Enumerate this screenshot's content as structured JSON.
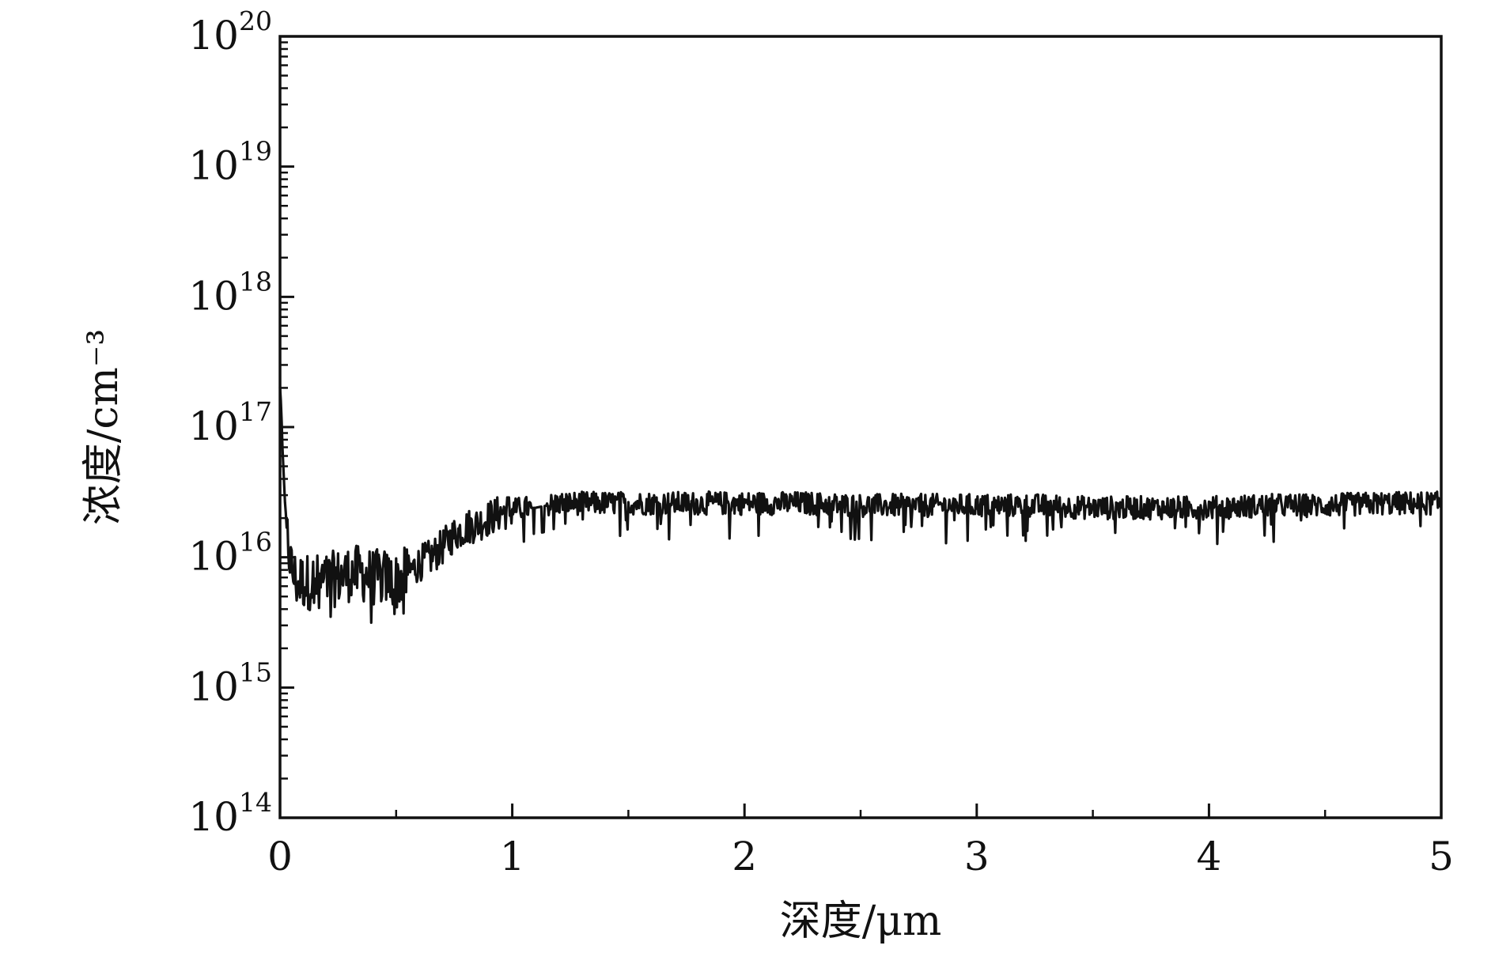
{
  "chart_data": {
    "type": "line",
    "xlabel": "深度/μm",
    "ylabel": "浓度/cm⁻³",
    "xlim": [
      0,
      5
    ],
    "ylim": [
      100000000000000.0,
      1e+20
    ],
    "y_scale": "log",
    "grid": false,
    "legend": "none",
    "colors": {
      "line": "#111111",
      "axis": "#111111"
    },
    "x_ticks": [
      {
        "value": 0,
        "label": "0"
      },
      {
        "value": 1,
        "label": "1"
      },
      {
        "value": 2,
        "label": "2"
      },
      {
        "value": 3,
        "label": "3"
      },
      {
        "value": 4,
        "label": "4"
      },
      {
        "value": 5,
        "label": "5"
      }
    ],
    "y_ticks": [
      {
        "exp": 14,
        "base": "10",
        "power": "14"
      },
      {
        "exp": 15,
        "base": "10",
        "power": "15"
      },
      {
        "exp": 16,
        "base": "10",
        "power": "16"
      },
      {
        "exp": 17,
        "base": "10",
        "power": "17"
      },
      {
        "exp": 18,
        "base": "10",
        "power": "18"
      },
      {
        "exp": 19,
        "base": "10",
        "power": "19"
      },
      {
        "exp": 20,
        "base": "10",
        "power": "20"
      }
    ],
    "series": [
      {
        "x": [
          0.0,
          0.005,
          0.01,
          0.02,
          0.03,
          0.05,
          0.07,
          0.1,
          0.15,
          0.2,
          0.25,
          0.3,
          0.35,
          0.4,
          0.45,
          0.5,
          0.55,
          0.6,
          0.65,
          0.7,
          0.75,
          0.8,
          0.85,
          0.9,
          0.95,
          1.0,
          1.05,
          1.1,
          1.15,
          1.2,
          1.3,
          1.4,
          1.5,
          1.75,
          2.0,
          2.25,
          2.5,
          2.75,
          3.0,
          3.25,
          3.5,
          3.75,
          4.0,
          4.25,
          4.5,
          4.75,
          5.0
        ],
        "y": [
          2e+17,
          1.5e+17,
          7e+16,
          3e+16,
          1.5e+16,
          8000000000000000.0,
          6500000000000000.0,
          6500000000000000.0,
          6500000000000000.0,
          6500000000000000.0,
          7000000000000000.0,
          7500000000000000.0,
          7500000000000000.0,
          7000000000000000.0,
          7000000000000000.0,
          6500000000000000.0,
          7500000000000000.0,
          9000000000000000.0,
          1e+16,
          1.2e+16,
          1.5e+16,
          1.7e+16,
          1.8e+16,
          2e+16,
          2.2e+16,
          2.3e+16,
          2.4e+16,
          2.4e+16,
          2.5e+16,
          2.6e+16,
          2.6e+16,
          2.6e+16,
          2.6e+16,
          2.6e+16,
          2.6e+16,
          2.6e+16,
          2.5e+16,
          2.5e+16,
          2.5e+16,
          2.5e+16,
          2.4e+16,
          2.4e+16,
          2.4e+16,
          2.5e+16,
          2.5e+16,
          2.6e+16,
          2.6e+16
        ]
      }
    ]
  }
}
